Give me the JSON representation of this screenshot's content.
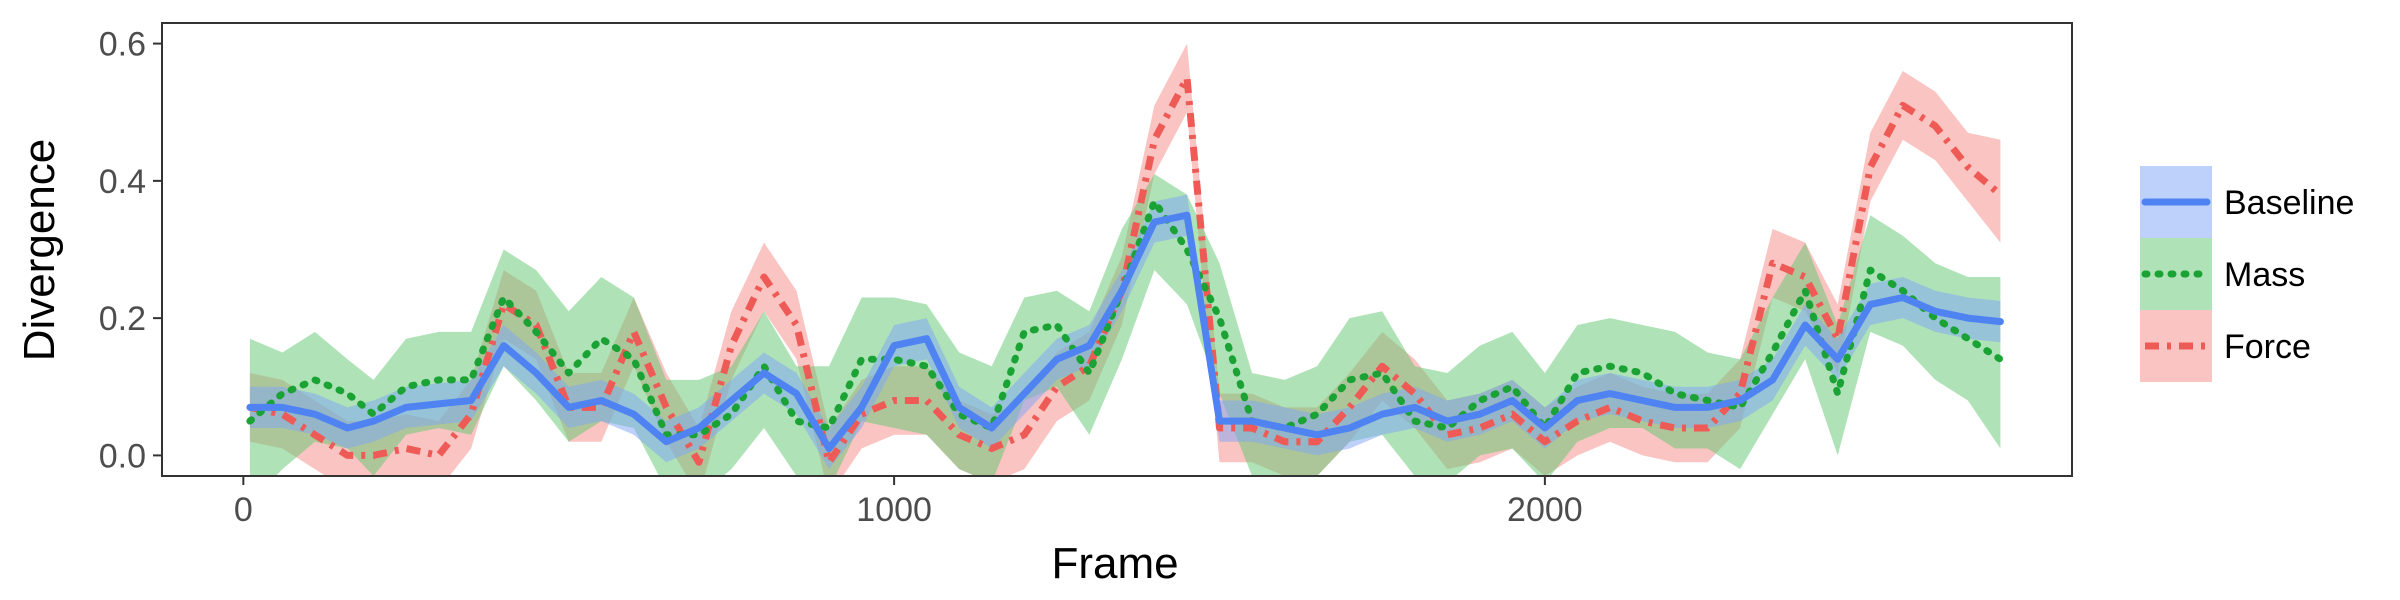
{
  "chart_data": {
    "type": "line",
    "xlabel": "Frame",
    "ylabel": "Divergence",
    "xlim": [
      -125,
      2810
    ],
    "ylim": [
      -0.03,
      0.63
    ],
    "xticks": [
      {
        "value": 0,
        "label": "0"
      },
      {
        "value": 1000,
        "label": "1000"
      },
      {
        "value": 2000,
        "label": "2000"
      }
    ],
    "yticks": [
      {
        "value": 0.0,
        "label": "0.0"
      },
      {
        "value": 0.2,
        "label": "0.2"
      },
      {
        "value": 0.4,
        "label": "0.4"
      },
      {
        "value": 0.6,
        "label": "0.6"
      }
    ],
    "grid": false,
    "legend_position": "right",
    "x": [
      10,
      60,
      110,
      160,
      200,
      250,
      300,
      350,
      400,
      450,
      500,
      550,
      600,
      650,
      700,
      750,
      800,
      850,
      900,
      950,
      1000,
      1050,
      1100,
      1150,
      1200,
      1250,
      1300,
      1350,
      1400,
      1450,
      1500,
      1550,
      1600,
      1650,
      1700,
      1750,
      1800,
      1850,
      1900,
      1950,
      2000,
      2050,
      2100,
      2150,
      2200,
      2250,
      2300,
      2350,
      2400,
      2450,
      2500,
      2550,
      2600,
      2650,
      2700
    ],
    "series": [
      {
        "name": "Baseline",
        "style": "solid",
        "color": "#4f83f2",
        "band_color": "#7da4f7",
        "values": [
          0.07,
          0.07,
          0.06,
          0.04,
          0.05,
          0.07,
          0.075,
          0.08,
          0.16,
          0.12,
          0.07,
          0.08,
          0.06,
          0.02,
          0.04,
          0.08,
          0.12,
          0.09,
          0.01,
          0.07,
          0.16,
          0.17,
          0.07,
          0.04,
          0.09,
          0.14,
          0.16,
          0.24,
          0.34,
          0.35,
          0.05,
          0.05,
          0.04,
          0.03,
          0.04,
          0.06,
          0.07,
          0.05,
          0.06,
          0.08,
          0.04,
          0.08,
          0.09,
          0.08,
          0.07,
          0.07,
          0.08,
          0.11,
          0.19,
          0.14,
          0.22,
          0.23,
          0.21,
          0.2,
          0.195
        ],
        "lower": [
          0.04,
          0.04,
          0.03,
          0.01,
          0.02,
          0.04,
          0.045,
          0.05,
          0.13,
          0.09,
          0.04,
          0.05,
          0.03,
          -0.01,
          0.01,
          0.05,
          0.09,
          0.06,
          -0.02,
          0.04,
          0.13,
          0.14,
          0.04,
          0.01,
          0.06,
          0.11,
          0.13,
          0.21,
          0.31,
          0.32,
          0.02,
          0.02,
          0.01,
          0.0,
          0.01,
          0.03,
          0.04,
          0.02,
          0.03,
          0.05,
          0.01,
          0.05,
          0.06,
          0.05,
          0.04,
          0.04,
          0.05,
          0.08,
          0.16,
          0.11,
          0.19,
          0.2,
          0.18,
          0.17,
          0.165
        ],
        "upper": [
          0.1,
          0.1,
          0.09,
          0.07,
          0.08,
          0.1,
          0.105,
          0.11,
          0.19,
          0.15,
          0.1,
          0.11,
          0.09,
          0.05,
          0.07,
          0.11,
          0.15,
          0.12,
          0.04,
          0.1,
          0.19,
          0.2,
          0.1,
          0.07,
          0.12,
          0.17,
          0.19,
          0.27,
          0.37,
          0.38,
          0.08,
          0.08,
          0.07,
          0.06,
          0.07,
          0.09,
          0.1,
          0.08,
          0.09,
          0.11,
          0.07,
          0.11,
          0.12,
          0.11,
          0.1,
          0.1,
          0.11,
          0.14,
          0.22,
          0.17,
          0.25,
          0.26,
          0.24,
          0.23,
          0.225
        ]
      },
      {
        "name": "Mass",
        "style": "dotted",
        "color": "#1aa334",
        "band_color": "#5fc86f",
        "values": [
          0.05,
          0.09,
          0.11,
          0.09,
          0.06,
          0.1,
          0.11,
          0.11,
          0.23,
          0.18,
          0.12,
          0.17,
          0.14,
          0.03,
          0.03,
          0.06,
          0.13,
          0.05,
          0.04,
          0.14,
          0.14,
          0.13,
          0.06,
          0.04,
          0.18,
          0.19,
          0.12,
          0.24,
          0.37,
          0.3,
          0.2,
          0.05,
          0.04,
          0.06,
          0.11,
          0.12,
          0.05,
          0.04,
          0.08,
          0.1,
          0.04,
          0.12,
          0.13,
          0.12,
          0.09,
          0.08,
          0.07,
          0.15,
          0.24,
          0.09,
          0.27,
          0.24,
          0.2,
          0.17,
          0.14
        ],
        "lower": [
          -0.07,
          -0.02,
          0.02,
          0.01,
          -0.03,
          0.03,
          0.04,
          0.03,
          0.13,
          0.08,
          0.02,
          0.05,
          0.04,
          -0.05,
          -0.06,
          -0.02,
          0.04,
          -0.03,
          -0.05,
          0.05,
          0.04,
          0.03,
          -0.02,
          -0.04,
          0.08,
          0.1,
          0.03,
          0.14,
          0.27,
          0.22,
          0.09,
          -0.03,
          -0.04,
          -0.03,
          0.02,
          0.03,
          -0.03,
          -0.04,
          0.0,
          0.01,
          -0.04,
          0.02,
          0.04,
          0.04,
          0.01,
          0.01,
          -0.02,
          0.06,
          0.14,
          0.0,
          0.18,
          0.16,
          0.11,
          0.08,
          0.01
        ],
        "upper": [
          0.17,
          0.15,
          0.18,
          0.14,
          0.11,
          0.17,
          0.18,
          0.18,
          0.3,
          0.27,
          0.21,
          0.26,
          0.23,
          0.11,
          0.11,
          0.13,
          0.21,
          0.13,
          0.13,
          0.23,
          0.23,
          0.22,
          0.15,
          0.13,
          0.23,
          0.24,
          0.21,
          0.33,
          0.41,
          0.38,
          0.28,
          0.12,
          0.11,
          0.13,
          0.2,
          0.21,
          0.13,
          0.12,
          0.16,
          0.18,
          0.12,
          0.19,
          0.2,
          0.19,
          0.18,
          0.15,
          0.14,
          0.23,
          0.31,
          0.19,
          0.35,
          0.32,
          0.28,
          0.26,
          0.26
        ]
      },
      {
        "name": "Force",
        "style": "dashdot",
        "color": "#ee5a55",
        "band_color": "#f58a86",
        "values": [
          0.07,
          0.06,
          0.03,
          0.0,
          0.0,
          0.01,
          0.0,
          0.06,
          0.22,
          0.19,
          0.07,
          0.07,
          0.18,
          0.07,
          -0.01,
          0.16,
          0.26,
          0.19,
          -0.01,
          0.06,
          0.08,
          0.08,
          0.03,
          0.01,
          0.03,
          0.1,
          0.13,
          0.24,
          0.46,
          0.55,
          0.04,
          0.04,
          0.02,
          0.02,
          0.07,
          0.13,
          0.09,
          0.03,
          0.04,
          0.06,
          0.02,
          0.05,
          0.07,
          0.05,
          0.04,
          0.04,
          0.09,
          0.28,
          0.26,
          0.17,
          0.42,
          0.51,
          0.48,
          0.42,
          0.38
        ],
        "lower": [
          0.02,
          0.01,
          -0.02,
          -0.05,
          -0.05,
          -0.04,
          -0.05,
          0.01,
          0.17,
          0.14,
          0.02,
          0.02,
          0.13,
          0.02,
          -0.06,
          0.11,
          0.21,
          0.14,
          -0.06,
          0.01,
          0.03,
          0.03,
          -0.02,
          -0.04,
          -0.02,
          0.05,
          0.08,
          0.19,
          0.41,
          0.5,
          -0.01,
          -0.01,
          -0.03,
          -0.03,
          0.02,
          0.08,
          0.04,
          -0.02,
          -0.01,
          0.01,
          -0.03,
          0.0,
          0.02,
          0.0,
          -0.01,
          -0.01,
          0.04,
          0.23,
          0.21,
          0.12,
          0.37,
          0.46,
          0.43,
          0.37,
          0.31
        ],
        "upper": [
          0.12,
          0.11,
          0.08,
          0.05,
          0.05,
          0.06,
          0.05,
          0.11,
          0.27,
          0.24,
          0.12,
          0.12,
          0.23,
          0.12,
          0.04,
          0.21,
          0.31,
          0.24,
          0.04,
          0.11,
          0.13,
          0.13,
          0.08,
          0.06,
          0.08,
          0.15,
          0.18,
          0.29,
          0.51,
          0.6,
          0.09,
          0.09,
          0.07,
          0.07,
          0.12,
          0.18,
          0.14,
          0.08,
          0.09,
          0.11,
          0.07,
          0.1,
          0.12,
          0.1,
          0.09,
          0.09,
          0.14,
          0.33,
          0.31,
          0.22,
          0.47,
          0.56,
          0.53,
          0.47,
          0.46
        ]
      }
    ]
  }
}
